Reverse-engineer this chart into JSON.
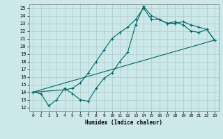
{
  "xlabel": "Humidex (Indice chaleur)",
  "bg_color": "#cce8e8",
  "grid_color": "#b0d0d0",
  "line_color": "#006666",
  "xlim": [
    -0.5,
    23.5
  ],
  "ylim": [
    11.5,
    25.5
  ],
  "xticks": [
    0,
    1,
    2,
    3,
    4,
    5,
    6,
    7,
    8,
    9,
    10,
    11,
    12,
    13,
    14,
    15,
    16,
    17,
    18,
    19,
    20,
    21,
    22,
    23
  ],
  "yticks": [
    12,
    13,
    14,
    15,
    16,
    17,
    18,
    19,
    20,
    21,
    22,
    23,
    24,
    25
  ],
  "line1_x": [
    0,
    1,
    2,
    3,
    4,
    5,
    6,
    7,
    8,
    9,
    10,
    11,
    12,
    13,
    14,
    15,
    16,
    17,
    18,
    19,
    20,
    21,
    22,
    23
  ],
  "line1_y": [
    14.0,
    13.8,
    12.2,
    13.0,
    14.5,
    13.8,
    13.0,
    12.8,
    14.5,
    15.8,
    16.5,
    18.0,
    19.2,
    22.8,
    25.2,
    24.0,
    23.5,
    23.0,
    23.2,
    22.8,
    22.0,
    21.8,
    22.2,
    20.8
  ],
  "line2_x": [
    0,
    4,
    5,
    6,
    7,
    8,
    9,
    10,
    11,
    12,
    13,
    14,
    15,
    16,
    17,
    18,
    19,
    20,
    21,
    22,
    23
  ],
  "line2_y": [
    14.0,
    14.3,
    14.5,
    15.2,
    16.5,
    18.0,
    19.5,
    21.0,
    21.8,
    22.5,
    23.5,
    25.0,
    23.5,
    23.5,
    23.0,
    23.0,
    23.2,
    22.8,
    22.5,
    22.2,
    20.8
  ],
  "line3_x": [
    0,
    23
  ],
  "line3_y": [
    14.0,
    20.8
  ]
}
